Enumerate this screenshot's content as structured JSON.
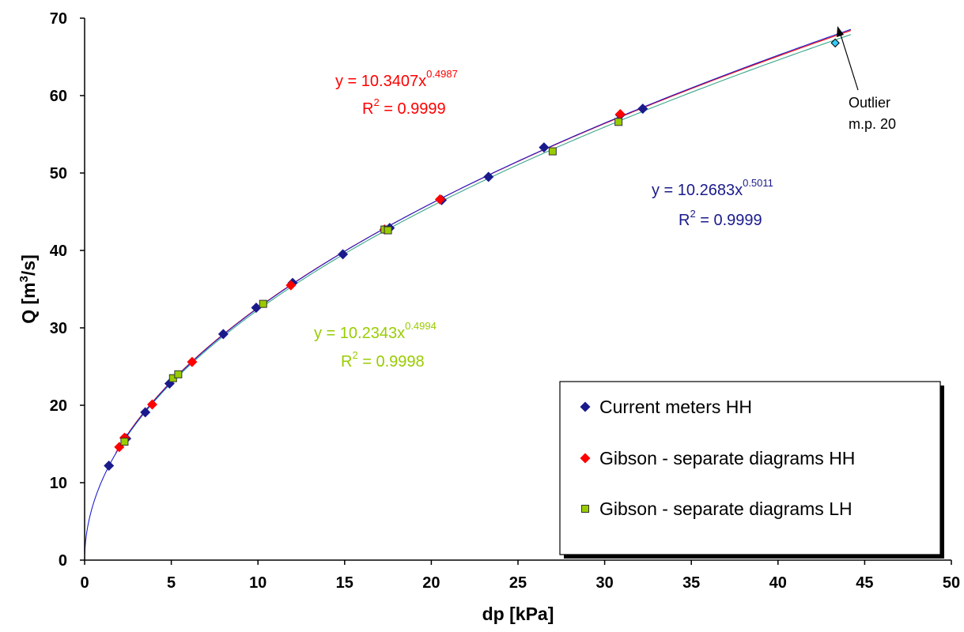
{
  "chart_data": {
    "type": "scatter",
    "xlabel": "dp [kPa]",
    "ylabel_main": "Q [m",
    "ylabel_sup": "3",
    "ylabel_tail": "/s]",
    "xlim": [
      0,
      50
    ],
    "ylim": [
      0,
      70
    ],
    "xticks": [
      0,
      5,
      10,
      15,
      20,
      25,
      30,
      35,
      40,
      45,
      50
    ],
    "yticks": [
      0,
      10,
      20,
      30,
      40,
      50,
      60,
      70
    ],
    "grid": false,
    "legend_position": "bottom-right",
    "series": [
      {
        "name": "Current meters HH",
        "marker": "diamond",
        "color": "#1a1a8c",
        "points": [
          {
            "x": 1.4,
            "y": 12.2
          },
          {
            "x": 2.4,
            "y": 15.7
          },
          {
            "x": 3.5,
            "y": 19.1
          },
          {
            "x": 4.9,
            "y": 22.8
          },
          {
            "x": 8.0,
            "y": 29.2
          },
          {
            "x": 9.9,
            "y": 32.6
          },
          {
            "x": 12.0,
            "y": 35.8
          },
          {
            "x": 14.9,
            "y": 39.5
          },
          {
            "x": 17.6,
            "y": 42.9
          },
          {
            "x": 20.6,
            "y": 46.5
          },
          {
            "x": 23.3,
            "y": 49.5
          },
          {
            "x": 26.5,
            "y": 53.3
          },
          {
            "x": 30.9,
            "y": 57.5
          },
          {
            "x": 32.2,
            "y": 58.3
          }
        ],
        "fit": {
          "a": 10.2683,
          "b": 0.5011,
          "x_from": 0,
          "x_to": 44.2,
          "color": "#1f1fd0"
        },
        "equation": {
          "prefix": "y = 10.2683x",
          "exp": "0.5011",
          "r2_prefix": "R",
          "r2_sup": "2",
          "r2_value": " = 0.9999",
          "color": "#1a1a8c"
        }
      },
      {
        "name": "Gibson - separate diagrams HH",
        "marker": "diamond",
        "color": "#ff0000",
        "points": [
          {
            "x": 2.0,
            "y": 14.6
          },
          {
            "x": 2.3,
            "y": 15.8
          },
          {
            "x": 3.9,
            "y": 20.1
          },
          {
            "x": 6.2,
            "y": 25.6
          },
          {
            "x": 11.9,
            "y": 35.5
          },
          {
            "x": 17.3,
            "y": 42.7
          },
          {
            "x": 20.5,
            "y": 46.6
          },
          {
            "x": 30.9,
            "y": 57.6
          }
        ],
        "fit": {
          "a": 10.3407,
          "b": 0.4987,
          "x_from": 1.8,
          "x_to": 44.2,
          "color": "#ff0000"
        },
        "equation": {
          "prefix": "y = 10.3407x",
          "exp": "0.4987",
          "r2_prefix": "R",
          "r2_sup": "2",
          "r2_value": " = 0.9999",
          "color": "#ff0000"
        }
      },
      {
        "name": "Gibson - separate diagrams LH",
        "marker": "square",
        "color": "#99cc00",
        "points": [
          {
            "x": 2.3,
            "y": 15.3
          },
          {
            "x": 5.1,
            "y": 23.5
          },
          {
            "x": 5.4,
            "y": 24.0
          },
          {
            "x": 10.3,
            "y": 33.1
          },
          {
            "x": 17.3,
            "y": 42.7
          },
          {
            "x": 17.5,
            "y": 42.6
          },
          {
            "x": 27.0,
            "y": 52.8
          },
          {
            "x": 30.8,
            "y": 56.6
          }
        ],
        "fit": {
          "a": 10.2343,
          "b": 0.4994,
          "x_from": 2.0,
          "x_to": 44.2,
          "color": "#3aa58c"
        },
        "equation": {
          "prefix": "y = 10.2343x",
          "exp": "0.4994",
          "r2_prefix": "R",
          "r2_sup": "2",
          "r2_value": " = 0.9998",
          "color": "#99cc00"
        }
      }
    ],
    "outlier": {
      "x": 43.3,
      "y": 66.8,
      "color": "#33ccff",
      "label_line1": "Outlier",
      "label_line2": "m.p. 20"
    }
  }
}
